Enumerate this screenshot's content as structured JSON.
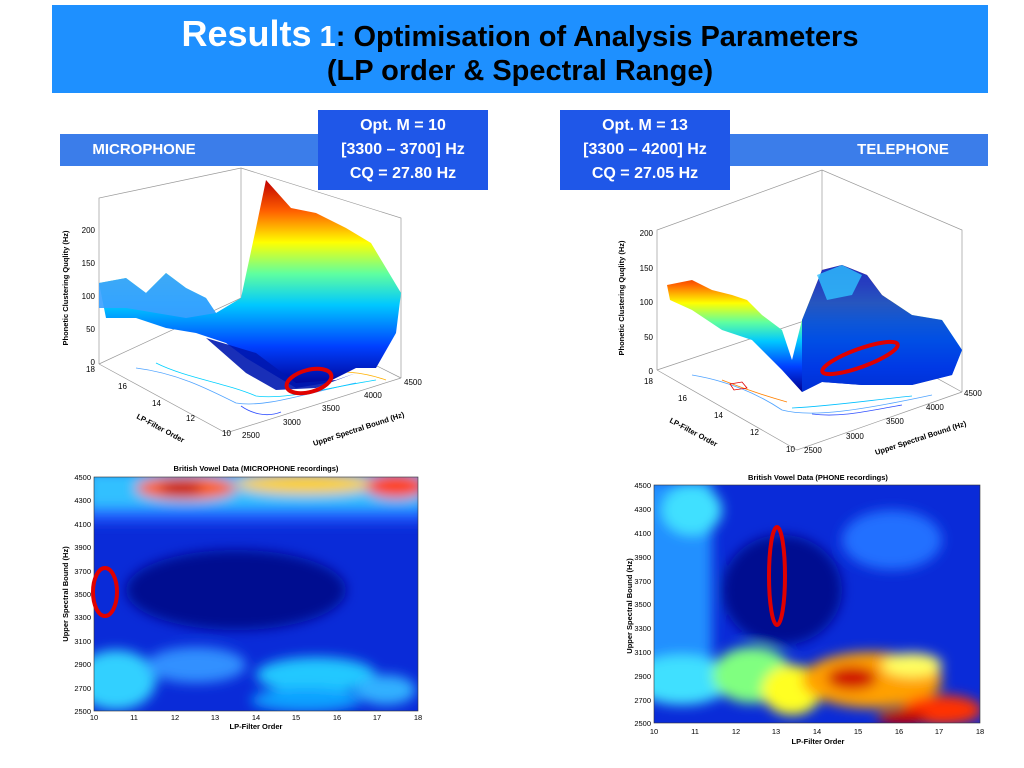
{
  "title": {
    "word": "Results",
    "number": "1",
    "line1": ": Optimisation of Analysis Parameters",
    "line2": "(LP order & Spectral Range)"
  },
  "labels": {
    "microphone": "MICROPHONE",
    "telephone": "TELEPHONE"
  },
  "opt_boxes": {
    "mic": {
      "line1": "Opt. M = 10",
      "line2": "[3300 – 3700] Hz",
      "line3": "CQ = 27.80 Hz"
    },
    "phone": {
      "line1": "Opt. M = 13",
      "line2": "[3300 – 4200] Hz",
      "line3": "CQ = 27.05 Hz"
    }
  },
  "surface_mic": {
    "zlabel": "Phonetic Clustering Quqlity (Hz)",
    "xlabel": "LP-Filter Order",
    "ylabel": "Upper Spectral Bound (Hz)",
    "z_ticks": [
      "200",
      "150",
      "100",
      "50",
      "0"
    ],
    "lp_ticks": [
      "18",
      "16",
      "14",
      "12",
      "10"
    ],
    "spec_ticks": [
      "2500",
      "3000",
      "3500",
      "4000",
      "4500"
    ]
  },
  "surface_phone": {
    "zlabel": "Phonetic Clustering Quqlity (Hz)",
    "xlabel": "LP-Filter Order",
    "ylabel": "Upper Spectral Bound (Hz)",
    "z_ticks": [
      "200",
      "150",
      "100",
      "50",
      "0"
    ],
    "lp_ticks": [
      "18",
      "16",
      "14",
      "12",
      "10"
    ],
    "spec_ticks": [
      "2500",
      "3000",
      "3500",
      "4000",
      "4500"
    ]
  },
  "heat_mic": {
    "title": "British Vowel Data (MICROPHONE recordings)",
    "xlabel": "LP-Filter Order",
    "ylabel": "Upper Spectral Bound (Hz)",
    "y_ticks": [
      "4500",
      "4300",
      "4100",
      "3900",
      "3700",
      "3500",
      "3300",
      "3100",
      "2900",
      "2700",
      "2500"
    ],
    "x_ticks": [
      "10",
      "11",
      "12",
      "13",
      "14",
      "15",
      "16",
      "17",
      "18"
    ]
  },
  "heat_phone": {
    "title": "British Vowel Data (PHONE recordings)",
    "xlabel": "LP-Filter Order",
    "ylabel": "Upper Spectral Bound (Hz)",
    "y_ticks": [
      "4500",
      "4300",
      "4100",
      "3900",
      "3700",
      "3500",
      "3300",
      "3100",
      "2900",
      "2700",
      "2500"
    ],
    "x_ticks": [
      "10",
      "11",
      "12",
      "13",
      "14",
      "15",
      "16",
      "17",
      "18"
    ]
  }
}
